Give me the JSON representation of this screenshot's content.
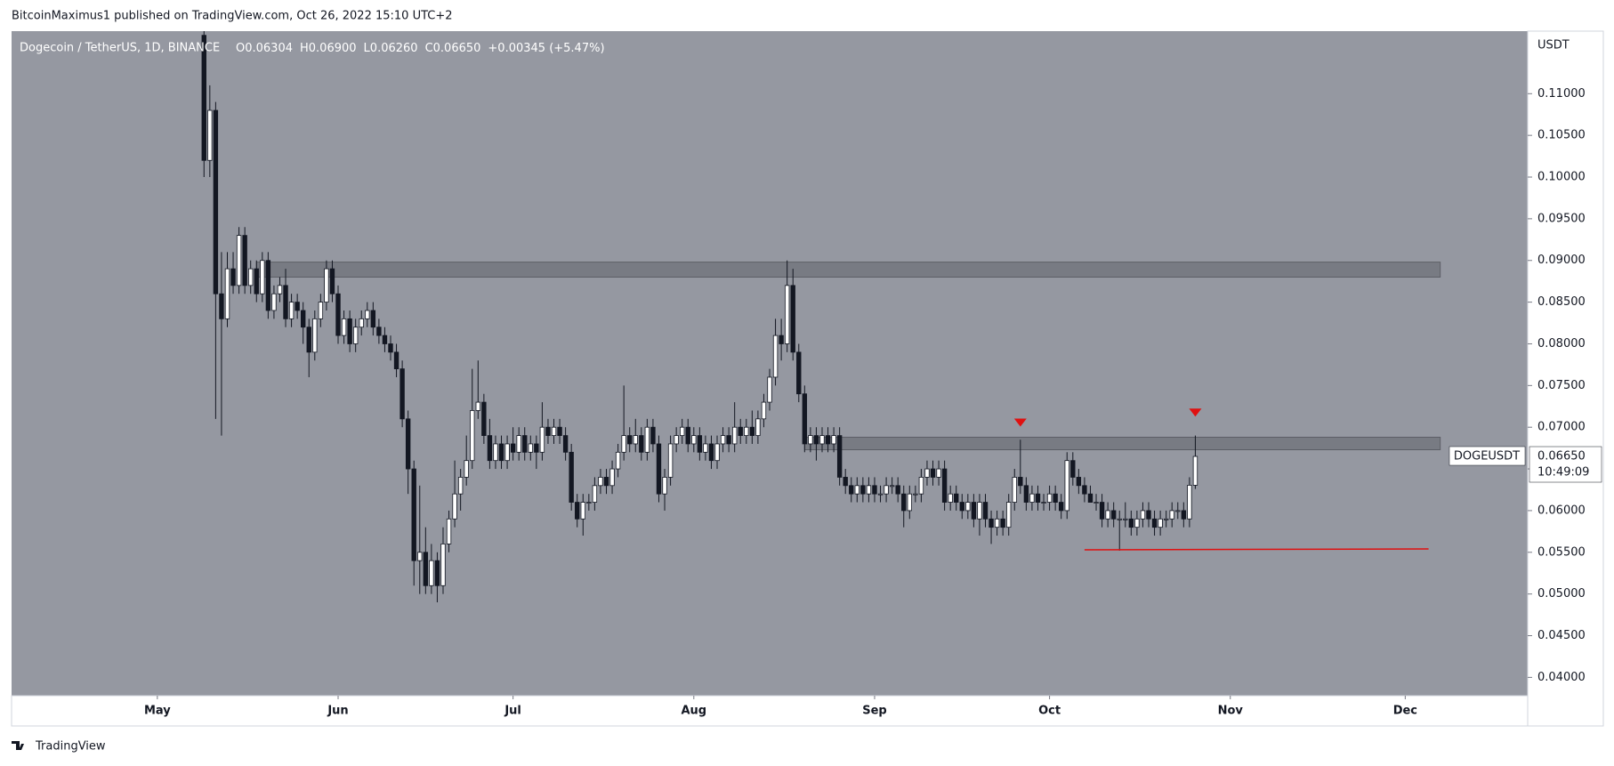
{
  "header": "BitcoinMaximus1 published on TradingView.com, Oct 26, 2022 15:10 UTC+2",
  "footer": "TradingView",
  "chart_data": {
    "type": "candlestick",
    "title": "Dogecoin / TetherUS, 1D, BINANCE",
    "ohlc_legend": [
      {
        "key": "O",
        "value": "0.06304"
      },
      {
        "key": "H",
        "value": "0.06900"
      },
      {
        "key": "L",
        "value": "0.06260"
      },
      {
        "key": "C",
        "value": "0.06650"
      }
    ],
    "change": "+0.00345 (+5.47%)",
    "y_unit": "USDT",
    "symbol": "DOGEUSDT",
    "last_price": "0.06650",
    "countdown": "10:49:09",
    "up_color": "#ffffff",
    "down_color": "#131722",
    "background": "#9598a1",
    "xlim": [
      96,
      356
    ],
    "ylim": [
      0.0378,
      0.1175
    ],
    "xticks": [
      {
        "value": 121,
        "label": "May"
      },
      {
        "value": 152,
        "label": "Jun"
      },
      {
        "value": 182,
        "label": "Jul"
      },
      {
        "value": 213,
        "label": "Aug"
      },
      {
        "value": 244,
        "label": "Sep"
      },
      {
        "value": 274,
        "label": "Oct"
      },
      {
        "value": 305,
        "label": "Nov"
      },
      {
        "value": 335,
        "label": "Dec"
      }
    ],
    "yticks": [
      {
        "value": 0.04,
        "label": "0.04000"
      },
      {
        "value": 0.045,
        "label": "0.04500"
      },
      {
        "value": 0.05,
        "label": "0.05000"
      },
      {
        "value": 0.055,
        "label": "0.05500"
      },
      {
        "value": 0.06,
        "label": "0.06000"
      },
      {
        "value": 0.065,
        "label": "0.06500"
      },
      {
        "value": 0.07,
        "label": "0.07000"
      },
      {
        "value": 0.075,
        "label": "0.07500"
      },
      {
        "value": 0.08,
        "label": "0.08000"
      },
      {
        "value": 0.085,
        "label": "0.08500"
      },
      {
        "value": 0.09,
        "label": "0.09000"
      },
      {
        "value": 0.095,
        "label": "0.09500"
      },
      {
        "value": 0.1,
        "label": "0.10000"
      },
      {
        "value": 0.105,
        "label": "0.10500"
      },
      {
        "value": 0.11,
        "label": "0.11000"
      }
    ],
    "zones": [
      {
        "from": 138,
        "to": 341,
        "low": 0.088,
        "high": 0.0898,
        "color": "#6f7179"
      },
      {
        "from": 232,
        "to": 341,
        "low": 0.0673,
        "high": 0.0688,
        "color": "#6f7179"
      }
    ],
    "support_line": {
      "from": 280,
      "to": 339,
      "y0": 0.0553,
      "y1": 0.0554,
      "color": "#e01010"
    },
    "markers": [
      {
        "x": 269,
        "y": 0.0705,
        "color": "#e01010"
      },
      {
        "x": 299,
        "y": 0.0717,
        "color": "#e01010"
      }
    ],
    "x": [
      129,
      130,
      131,
      132,
      133,
      134,
      135,
      136,
      137,
      138,
      139,
      140,
      141,
      142,
      143,
      144,
      145,
      146,
      147,
      148,
      149,
      150,
      151,
      152,
      153,
      154,
      155,
      156,
      157,
      158,
      159,
      160,
      161,
      162,
      163,
      164,
      165,
      166,
      167,
      168,
      169,
      170,
      171,
      172,
      173,
      174,
      175,
      176,
      177,
      178,
      179,
      180,
      181,
      182,
      183,
      184,
      185,
      186,
      187,
      188,
      189,
      190,
      191,
      192,
      193,
      194,
      195,
      196,
      197,
      198,
      199,
      200,
      201,
      202,
      203,
      204,
      205,
      206,
      207,
      208,
      209,
      210,
      211,
      212,
      213,
      214,
      215,
      216,
      217,
      218,
      219,
      220,
      221,
      222,
      223,
      224,
      225,
      226,
      227,
      228,
      229,
      230,
      231,
      232,
      233,
      234,
      235,
      236,
      237,
      238,
      239,
      240,
      241,
      242,
      243,
      244,
      245,
      246,
      247,
      248,
      249,
      250,
      251,
      252,
      253,
      254,
      255,
      256,
      257,
      258,
      259,
      260,
      261,
      262,
      263,
      264,
      265,
      266,
      267,
      268,
      269,
      270,
      271,
      272,
      273,
      274,
      275,
      276,
      277,
      278,
      279,
      280,
      281,
      282,
      283,
      284,
      285,
      286,
      287,
      288,
      289,
      290,
      291,
      292,
      293,
      294,
      295,
      296,
      297,
      298,
      299
    ],
    "candles": [
      [
        0.117,
        0.125,
        0.1,
        0.102
      ],
      [
        0.102,
        0.111,
        0.1,
        0.108
      ],
      [
        0.108,
        0.109,
        0.071,
        0.086
      ],
      [
        0.086,
        0.091,
        0.069,
        0.083
      ],
      [
        0.083,
        0.091,
        0.082,
        0.089
      ],
      [
        0.089,
        0.091,
        0.086,
        0.087
      ],
      [
        0.087,
        0.094,
        0.086,
        0.093
      ],
      [
        0.093,
        0.094,
        0.086,
        0.087
      ],
      [
        0.087,
        0.09,
        0.086,
        0.089
      ],
      [
        0.089,
        0.09,
        0.085,
        0.086
      ],
      [
        0.086,
        0.091,
        0.085,
        0.09
      ],
      [
        0.09,
        0.091,
        0.083,
        0.084
      ],
      [
        0.084,
        0.087,
        0.083,
        0.086
      ],
      [
        0.086,
        0.088,
        0.085,
        0.087
      ],
      [
        0.087,
        0.089,
        0.082,
        0.083
      ],
      [
        0.083,
        0.086,
        0.082,
        0.085
      ],
      [
        0.085,
        0.086,
        0.083,
        0.084
      ],
      [
        0.084,
        0.085,
        0.08,
        0.082
      ],
      [
        0.082,
        0.083,
        0.076,
        0.079
      ],
      [
        0.079,
        0.084,
        0.078,
        0.083
      ],
      [
        0.083,
        0.086,
        0.082,
        0.085
      ],
      [
        0.085,
        0.09,
        0.084,
        0.089
      ],
      [
        0.089,
        0.09,
        0.085,
        0.086
      ],
      [
        0.086,
        0.087,
        0.08,
        0.081
      ],
      [
        0.081,
        0.084,
        0.08,
        0.083
      ],
      [
        0.083,
        0.084,
        0.079,
        0.08
      ],
      [
        0.08,
        0.083,
        0.079,
        0.082
      ],
      [
        0.082,
        0.084,
        0.081,
        0.083
      ],
      [
        0.083,
        0.085,
        0.082,
        0.084
      ],
      [
        0.084,
        0.085,
        0.081,
        0.082
      ],
      [
        0.082,
        0.083,
        0.08,
        0.081
      ],
      [
        0.081,
        0.082,
        0.079,
        0.08
      ],
      [
        0.08,
        0.081,
        0.078,
        0.079
      ],
      [
        0.079,
        0.08,
        0.076,
        0.077
      ],
      [
        0.077,
        0.078,
        0.07,
        0.071
      ],
      [
        0.071,
        0.072,
        0.062,
        0.065
      ],
      [
        0.065,
        0.066,
        0.051,
        0.054
      ],
      [
        0.054,
        0.063,
        0.05,
        0.055
      ],
      [
        0.055,
        0.058,
        0.05,
        0.051
      ],
      [
        0.051,
        0.056,
        0.05,
        0.054
      ],
      [
        0.054,
        0.055,
        0.049,
        0.051
      ],
      [
        0.051,
        0.058,
        0.05,
        0.056
      ],
      [
        0.056,
        0.06,
        0.055,
        0.059
      ],
      [
        0.059,
        0.066,
        0.058,
        0.062
      ],
      [
        0.062,
        0.065,
        0.06,
        0.064
      ],
      [
        0.064,
        0.069,
        0.063,
        0.066
      ],
      [
        0.066,
        0.077,
        0.065,
        0.072
      ],
      [
        0.072,
        0.078,
        0.071,
        0.073
      ],
      [
        0.073,
        0.074,
        0.068,
        0.069
      ],
      [
        0.069,
        0.071,
        0.065,
        0.066
      ],
      [
        0.066,
        0.069,
        0.065,
        0.068
      ],
      [
        0.068,
        0.069,
        0.065,
        0.066
      ],
      [
        0.066,
        0.069,
        0.065,
        0.068
      ],
      [
        0.068,
        0.07,
        0.066,
        0.067
      ],
      [
        0.067,
        0.07,
        0.066,
        0.069
      ],
      [
        0.069,
        0.07,
        0.066,
        0.067
      ],
      [
        0.067,
        0.069,
        0.066,
        0.068
      ],
      [
        0.068,
        0.069,
        0.065,
        0.067
      ],
      [
        0.067,
        0.073,
        0.066,
        0.07
      ],
      [
        0.07,
        0.071,
        0.068,
        0.069
      ],
      [
        0.069,
        0.071,
        0.068,
        0.07
      ],
      [
        0.07,
        0.071,
        0.068,
        0.069
      ],
      [
        0.069,
        0.07,
        0.066,
        0.067
      ],
      [
        0.067,
        0.068,
        0.06,
        0.061
      ],
      [
        0.061,
        0.062,
        0.058,
        0.059
      ],
      [
        0.059,
        0.062,
        0.057,
        0.061
      ],
      [
        0.061,
        0.062,
        0.06,
        0.061
      ],
      [
        0.061,
        0.064,
        0.06,
        0.063
      ],
      [
        0.063,
        0.065,
        0.062,
        0.064
      ],
      [
        0.064,
        0.065,
        0.062,
        0.063
      ],
      [
        0.063,
        0.066,
        0.062,
        0.065
      ],
      [
        0.065,
        0.068,
        0.064,
        0.067
      ],
      [
        0.067,
        0.075,
        0.066,
        0.069
      ],
      [
        0.069,
        0.07,
        0.067,
        0.068
      ],
      [
        0.068,
        0.071,
        0.067,
        0.069
      ],
      [
        0.069,
        0.07,
        0.066,
        0.067
      ],
      [
        0.067,
        0.071,
        0.066,
        0.07
      ],
      [
        0.07,
        0.071,
        0.067,
        0.068
      ],
      [
        0.068,
        0.069,
        0.061,
        0.062
      ],
      [
        0.062,
        0.065,
        0.06,
        0.064
      ],
      [
        0.064,
        0.069,
        0.063,
        0.068
      ],
      [
        0.068,
        0.07,
        0.067,
        0.069
      ],
      [
        0.069,
        0.071,
        0.068,
        0.07
      ],
      [
        0.07,
        0.071,
        0.067,
        0.068
      ],
      [
        0.068,
        0.07,
        0.067,
        0.069
      ],
      [
        0.069,
        0.07,
        0.066,
        0.067
      ],
      [
        0.067,
        0.069,
        0.066,
        0.068
      ],
      [
        0.068,
        0.069,
        0.065,
        0.066
      ],
      [
        0.066,
        0.069,
        0.065,
        0.068
      ],
      [
        0.068,
        0.07,
        0.067,
        0.069
      ],
      [
        0.069,
        0.07,
        0.067,
        0.068
      ],
      [
        0.068,
        0.073,
        0.067,
        0.07
      ],
      [
        0.07,
        0.071,
        0.068,
        0.069
      ],
      [
        0.069,
        0.071,
        0.068,
        0.07
      ],
      [
        0.07,
        0.072,
        0.068,
        0.069
      ],
      [
        0.069,
        0.072,
        0.068,
        0.071
      ],
      [
        0.071,
        0.074,
        0.07,
        0.073
      ],
      [
        0.073,
        0.077,
        0.072,
        0.076
      ],
      [
        0.076,
        0.083,
        0.075,
        0.081
      ],
      [
        0.081,
        0.083,
        0.078,
        0.08
      ],
      [
        0.08,
        0.09,
        0.079,
        0.087
      ],
      [
        0.087,
        0.089,
        0.078,
        0.079
      ],
      [
        0.079,
        0.08,
        0.073,
        0.074
      ],
      [
        0.074,
        0.075,
        0.067,
        0.068
      ],
      [
        0.068,
        0.07,
        0.067,
        0.069
      ],
      [
        0.069,
        0.07,
        0.066,
        0.068
      ],
      [
        0.068,
        0.07,
        0.067,
        0.069
      ],
      [
        0.069,
        0.07,
        0.067,
        0.068
      ],
      [
        0.068,
        0.07,
        0.067,
        0.069
      ],
      [
        0.069,
        0.07,
        0.063,
        0.064
      ],
      [
        0.064,
        0.065,
        0.062,
        0.063
      ],
      [
        0.063,
        0.064,
        0.061,
        0.062
      ],
      [
        0.062,
        0.064,
        0.061,
        0.063
      ],
      [
        0.063,
        0.064,
        0.061,
        0.062
      ],
      [
        0.062,
        0.064,
        0.061,
        0.063
      ],
      [
        0.063,
        0.064,
        0.061,
        0.062
      ],
      [
        0.062,
        0.063,
        0.061,
        0.062
      ],
      [
        0.062,
        0.064,
        0.061,
        0.063
      ],
      [
        0.063,
        0.064,
        0.062,
        0.063
      ],
      [
        0.063,
        0.064,
        0.061,
        0.062
      ],
      [
        0.062,
        0.063,
        0.058,
        0.06
      ],
      [
        0.06,
        0.063,
        0.059,
        0.062
      ],
      [
        0.062,
        0.063,
        0.061,
        0.062
      ],
      [
        0.062,
        0.065,
        0.061,
        0.064
      ],
      [
        0.064,
        0.066,
        0.063,
        0.065
      ],
      [
        0.065,
        0.066,
        0.063,
        0.064
      ],
      [
        0.064,
        0.066,
        0.063,
        0.065
      ],
      [
        0.065,
        0.066,
        0.06,
        0.061
      ],
      [
        0.061,
        0.063,
        0.06,
        0.062
      ],
      [
        0.062,
        0.063,
        0.06,
        0.061
      ],
      [
        0.061,
        0.062,
        0.059,
        0.06
      ],
      [
        0.06,
        0.062,
        0.059,
        0.061
      ],
      [
        0.061,
        0.062,
        0.058,
        0.059
      ],
      [
        0.059,
        0.062,
        0.057,
        0.061
      ],
      [
        0.061,
        0.062,
        0.058,
        0.059
      ],
      [
        0.059,
        0.06,
        0.056,
        0.058
      ],
      [
        0.058,
        0.06,
        0.057,
        0.059
      ],
      [
        0.059,
        0.06,
        0.057,
        0.058
      ],
      [
        0.058,
        0.062,
        0.057,
        0.061
      ],
      [
        0.061,
        0.065,
        0.06,
        0.064
      ],
      [
        0.064,
        0.0685,
        0.062,
        0.063
      ],
      [
        0.063,
        0.064,
        0.06,
        0.061
      ],
      [
        0.061,
        0.063,
        0.06,
        0.062
      ],
      [
        0.062,
        0.063,
        0.06,
        0.061
      ],
      [
        0.061,
        0.062,
        0.06,
        0.061
      ],
      [
        0.061,
        0.063,
        0.06,
        0.062
      ],
      [
        0.062,
        0.063,
        0.06,
        0.061
      ],
      [
        0.061,
        0.062,
        0.059,
        0.06
      ],
      [
        0.06,
        0.067,
        0.059,
        0.066
      ],
      [
        0.066,
        0.067,
        0.063,
        0.064
      ],
      [
        0.064,
        0.065,
        0.062,
        0.063
      ],
      [
        0.063,
        0.064,
        0.061,
        0.062
      ],
      [
        0.062,
        0.063,
        0.061,
        0.061
      ],
      [
        0.061,
        0.062,
        0.06,
        0.061
      ],
      [
        0.061,
        0.062,
        0.058,
        0.059
      ],
      [
        0.059,
        0.061,
        0.058,
        0.06
      ],
      [
        0.06,
        0.061,
        0.058,
        0.059
      ],
      [
        0.059,
        0.06,
        0.0552,
        0.059
      ],
      [
        0.059,
        0.061,
        0.058,
        0.059
      ],
      [
        0.059,
        0.06,
        0.057,
        0.058
      ],
      [
        0.058,
        0.06,
        0.057,
        0.059
      ],
      [
        0.059,
        0.061,
        0.058,
        0.06
      ],
      [
        0.06,
        0.061,
        0.058,
        0.059
      ],
      [
        0.059,
        0.06,
        0.057,
        0.058
      ],
      [
        0.058,
        0.06,
        0.057,
        0.059
      ],
      [
        0.059,
        0.06,
        0.058,
        0.059
      ],
      [
        0.059,
        0.061,
        0.058,
        0.06
      ],
      [
        0.06,
        0.061,
        0.059,
        0.06
      ],
      [
        0.06,
        0.061,
        0.058,
        0.059
      ],
      [
        0.059,
        0.064,
        0.058,
        0.06304
      ],
      [
        0.06304,
        0.069,
        0.0626,
        0.0665
      ]
    ]
  }
}
